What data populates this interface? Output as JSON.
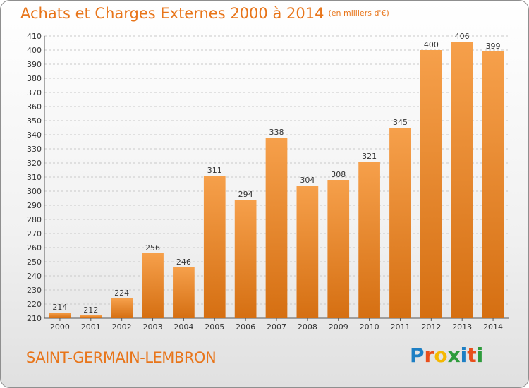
{
  "chart_data": {
    "type": "bar",
    "title": "Achats et Charges Externes 2000 à 2014",
    "subtitle": "(en milliers d'€)",
    "categories": [
      "2000",
      "2001",
      "2002",
      "2003",
      "2004",
      "2005",
      "2006",
      "2007",
      "2008",
      "2009",
      "2010",
      "2011",
      "2012",
      "2013",
      "2014"
    ],
    "values": [
      214,
      212,
      224,
      256,
      246,
      311,
      294,
      338,
      304,
      308,
      321,
      345,
      400,
      406,
      399
    ],
    "ylim": [
      210,
      410
    ],
    "ytick_step": 10,
    "grid": true,
    "legend": "none",
    "xlabel": "",
    "ylabel": ""
  },
  "city": "SAINT-GERMAIN-LEMBRON",
  "logo": {
    "letters": [
      "P",
      "r",
      "o",
      "x",
      "i",
      "t",
      "i"
    ],
    "colors": [
      "#1d7fc4",
      "#e94e1b",
      "#f5b800",
      "#2e9b3c",
      "#1d7fc4",
      "#e94e1b",
      "#2e9b3c"
    ]
  },
  "colors": {
    "bar_top": "#f6a04b",
    "bar_bottom": "#d56f12",
    "title": "#e8751a"
  }
}
